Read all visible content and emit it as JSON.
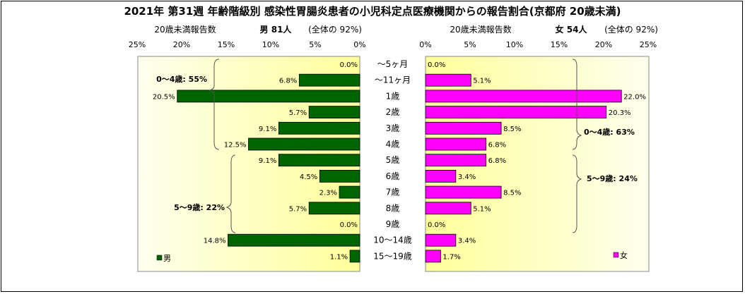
{
  "title": "2021年 第31週 年齢階級別 感染性胃腸炎患者の小児科定点医療機関からの報告割合(京都府 20歳未満)",
  "colors": {
    "male": "#006400",
    "female": "#ff00ff"
  },
  "header": {
    "male": {
      "label": "20歳未満報告数",
      "count": "男 81人",
      "share": "(全体の 92%)"
    },
    "female": {
      "label": "20歳未満報告数",
      "count": "女 54人",
      "share": "(全体の 92%)"
    }
  },
  "brackets": {
    "male_0_4": "0～4歳: 55%",
    "male_5_9": "5～9歳: 22%",
    "female_0_4": "0～4歳: 63%",
    "female_5_9": "5～9歳: 24%"
  },
  "chart_data": {
    "type": "bar",
    "orientation": "horizontal",
    "layout": "population-pyramid",
    "categories": [
      "～5ヶ月",
      "～11ヶ月",
      "1歳",
      "2歳",
      "3歳",
      "4歳",
      "5歳",
      "6歳",
      "7歳",
      "8歳",
      "9歳",
      "10～14歳",
      "15～19歳"
    ],
    "series": [
      {
        "name": "男",
        "values": [
          0.0,
          6.8,
          20.5,
          5.7,
          9.1,
          12.5,
          9.1,
          4.5,
          2.3,
          5.7,
          0.0,
          14.8,
          1.1
        ]
      },
      {
        "name": "女",
        "values": [
          0.0,
          5.1,
          22.0,
          20.3,
          8.5,
          6.8,
          6.8,
          3.4,
          8.5,
          5.1,
          0.0,
          3.4,
          1.7
        ]
      }
    ],
    "value_suffix": "%",
    "xlim": [
      0,
      25
    ],
    "ticks": [
      "0%",
      "5%",
      "10%",
      "15%",
      "20%",
      "25%"
    ],
    "legend": [
      "男",
      "女"
    ],
    "legend_placement": "bottom-left / bottom-right",
    "grid": false
  }
}
